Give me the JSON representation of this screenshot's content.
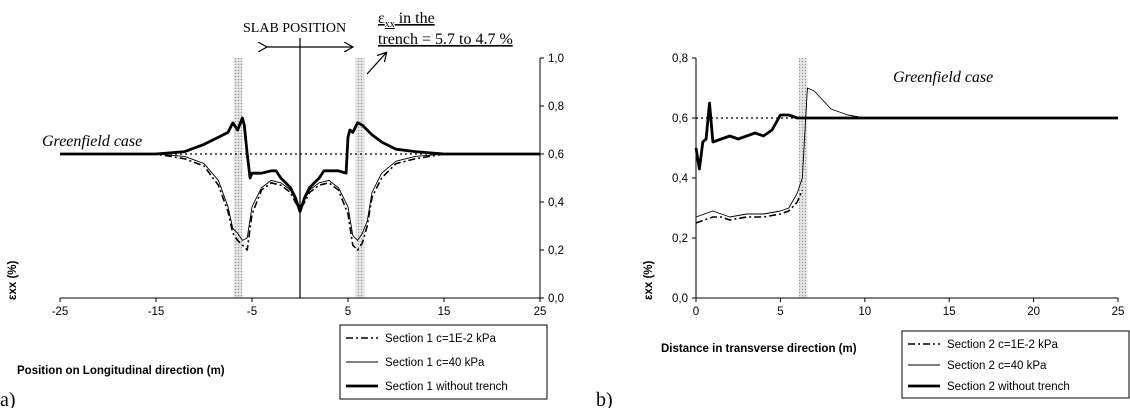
{
  "chart_data": [
    {
      "panel": "a)",
      "type": "line",
      "xlabel": "Position on Longitudinal direction (m)",
      "ylabel": "εxx  (%)",
      "xlim": [
        -25,
        25
      ],
      "ylim": [
        0.0,
        1.0
      ],
      "xticks": [
        "-25",
        "-15",
        "-5",
        "5",
        "15",
        "25"
      ],
      "yticks": [
        "0,0",
        "0,2",
        "0,4",
        "0,6",
        "0,8",
        "1,0"
      ],
      "annotations": {
        "greenfield": "Greenfield case",
        "slab_position": "SLAB POSITION",
        "trench_line1": "ε",
        "trench_sub": "xx",
        "trench_line1_rest": " in the",
        "trench_line2": "trench = 5.7 to 4.7 %"
      },
      "trench_zones": [
        [
          -6.9,
          -6.0
        ],
        [
          5.8,
          6.7
        ]
      ],
      "greenfield_level": 0.6,
      "series": [
        {
          "name": "Section 1 c=1E-2 kPa",
          "style": "dashdot",
          "x": [
            -25,
            -15,
            -12,
            -10,
            -8.5,
            -7.5,
            -7,
            -6.5,
            -6,
            -5.5,
            -5,
            -4,
            -3,
            -2,
            -1,
            -0.5,
            0,
            0.5,
            1,
            2,
            3,
            4,
            5,
            5.5,
            6,
            6.5,
            7,
            7.5,
            8.5,
            10,
            12,
            15,
            25
          ],
          "y": [
            0.6,
            0.6,
            0.58,
            0.55,
            0.47,
            0.36,
            0.27,
            0.24,
            0.22,
            0.2,
            0.35,
            0.45,
            0.48,
            0.47,
            0.44,
            0.4,
            0.37,
            0.4,
            0.44,
            0.47,
            0.48,
            0.45,
            0.35,
            0.22,
            0.2,
            0.23,
            0.3,
            0.42,
            0.5,
            0.56,
            0.58,
            0.6,
            0.6
          ]
        },
        {
          "name": "Section 1 c=40 kPa",
          "style": "thin",
          "x": [
            -25,
            -15,
            -12,
            -10,
            -8.5,
            -7.5,
            -7,
            -6.5,
            -6,
            -5.5,
            -5,
            -4,
            -3,
            -2,
            -1,
            -0.5,
            0,
            0.5,
            1,
            2,
            3,
            4,
            5,
            5.5,
            6,
            6.5,
            7,
            7.5,
            8.5,
            10,
            12,
            15,
            25
          ],
          "y": [
            0.6,
            0.6,
            0.59,
            0.56,
            0.49,
            0.38,
            0.29,
            0.27,
            0.24,
            0.25,
            0.38,
            0.46,
            0.49,
            0.48,
            0.45,
            0.41,
            0.38,
            0.41,
            0.45,
            0.48,
            0.49,
            0.46,
            0.38,
            0.26,
            0.24,
            0.27,
            0.32,
            0.44,
            0.52,
            0.57,
            0.59,
            0.6,
            0.6
          ]
        },
        {
          "name": "Section 1 without trench",
          "style": "thick",
          "x": [
            -25,
            -15,
            -12,
            -10,
            -8.5,
            -7.5,
            -7,
            -6.5,
            -6,
            -5.8,
            -5.5,
            -5.2,
            -5,
            -4,
            -3,
            -2.5,
            -2,
            -1,
            -0.5,
            0,
            0.5,
            1,
            2,
            2.5,
            3,
            4,
            4.8,
            5,
            5.2,
            5.5,
            6,
            6.5,
            7,
            7.5,
            8.5,
            10,
            12,
            15,
            25
          ],
          "y": [
            0.6,
            0.6,
            0.61,
            0.64,
            0.67,
            0.69,
            0.73,
            0.7,
            0.75,
            0.72,
            0.6,
            0.5,
            0.52,
            0.52,
            0.53,
            0.53,
            0.5,
            0.46,
            0.42,
            0.36,
            0.42,
            0.46,
            0.5,
            0.53,
            0.53,
            0.53,
            0.52,
            0.67,
            0.7,
            0.69,
            0.73,
            0.72,
            0.7,
            0.68,
            0.65,
            0.62,
            0.61,
            0.6,
            0.6
          ]
        }
      ]
    },
    {
      "panel": "b)",
      "type": "line",
      "xlabel": "Distance in transverse direction (m)",
      "ylabel": "εxx (%)",
      "xlim": [
        0,
        25
      ],
      "ylim": [
        0.0,
        0.8
      ],
      "xticks": [
        "0",
        "5",
        "10",
        "15",
        "20",
        "25"
      ],
      "yticks": [
        "0,0",
        "0,2",
        "0,4",
        "0,6",
        "0,8"
      ],
      "annotations": {
        "greenfield": "Greenfield case"
      },
      "trench_zones": [
        [
          6.1,
          6.6
        ]
      ],
      "greenfield_level": 0.6,
      "series": [
        {
          "name": "Section 2 c=1E-2 kPa",
          "style": "dashdot",
          "x": [
            0,
            0.5,
            1,
            1.5,
            2,
            3,
            4,
            5,
            5.5,
            6,
            6.3
          ],
          "y": [
            0.25,
            0.26,
            0.27,
            0.27,
            0.26,
            0.27,
            0.27,
            0.28,
            0.29,
            0.32,
            0.36
          ]
        },
        {
          "name": "Section 2 c=40 kPa",
          "style": "thin",
          "x": [
            0,
            0.5,
            1,
            1.5,
            2,
            3,
            4,
            5,
            5.5,
            6,
            6.3,
            6.6,
            7,
            7.5,
            8,
            9,
            10,
            15,
            20,
            25
          ],
          "y": [
            0.27,
            0.28,
            0.29,
            0.28,
            0.27,
            0.28,
            0.28,
            0.29,
            0.3,
            0.35,
            0.4,
            0.7,
            0.69,
            0.66,
            0.63,
            0.61,
            0.6,
            0.6,
            0.6,
            0.6
          ]
        },
        {
          "name": "Section 2 without trench",
          "style": "thick",
          "x": [
            0,
            0.2,
            0.4,
            0.6,
            0.8,
            1,
            1.5,
            2,
            2.5,
            3,
            3.5,
            4,
            4.5,
            5,
            5.5,
            6,
            6.5,
            7,
            8,
            10,
            15,
            20,
            25
          ],
          "y": [
            0.5,
            0.43,
            0.52,
            0.53,
            0.65,
            0.52,
            0.53,
            0.54,
            0.53,
            0.54,
            0.55,
            0.54,
            0.56,
            0.61,
            0.61,
            0.6,
            0.6,
            0.6,
            0.6,
            0.6,
            0.6,
            0.6,
            0.6
          ]
        }
      ]
    }
  ]
}
